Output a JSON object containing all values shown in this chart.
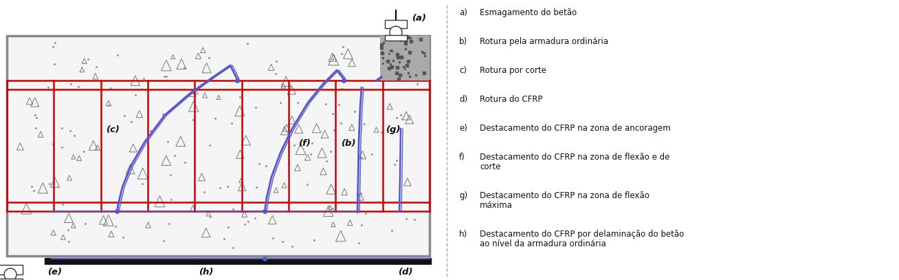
{
  "figure_width": 13.08,
  "figure_height": 4.07,
  "dpi": 100,
  "bg_color": "#ffffff",
  "legend_items": [
    [
      "a)",
      "Esmagamento do betão"
    ],
    [
      "b)",
      "Rotura pela armadura ordinária"
    ],
    [
      "c)",
      "Rotura por corte"
    ],
    [
      "d)",
      "Rotura do CFRP"
    ],
    [
      "e)",
      "Destacamento do CFRP na zona de ancoragem"
    ],
    [
      "f)",
      "Destacamento do CFRP na zona de flexão e de\n     corte"
    ],
    [
      "g)",
      "Destacamento do CFRP na zona de flexão\n     máxima"
    ],
    [
      "h)",
      "Destacamento do CFRP por delaminação do betão\n     ao nível da armadura ordinária"
    ]
  ],
  "label_fontsize": 8.5,
  "annot_fontsize": 9.5
}
